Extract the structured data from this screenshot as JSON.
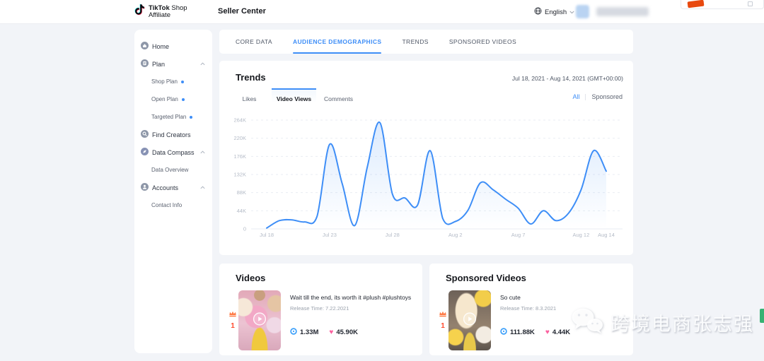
{
  "header": {
    "logo_bold": "TikTok",
    "logo_shop": "Shop",
    "logo_sub": "Affiliate",
    "title": "Seller Center",
    "language": "English"
  },
  "sidebar": {
    "items": [
      {
        "label": "Home",
        "icon": "home-icon"
      },
      {
        "label": "Plan",
        "icon": "plan-icon",
        "expanded": true,
        "children": [
          {
            "label": "Shop Plan",
            "dot": true
          },
          {
            "label": "Open Plan",
            "dot": true
          },
          {
            "label": "Targeted Plan",
            "dot": true
          }
        ]
      },
      {
        "label": "Find Creators",
        "icon": "magnifier-icon"
      },
      {
        "label": "Data Compass",
        "icon": "compass-icon",
        "expanded": true,
        "children": [
          {
            "label": "Data Overview"
          }
        ]
      },
      {
        "label": "Accounts",
        "icon": "person-icon",
        "expanded": true,
        "children": [
          {
            "label": "Contact Info"
          }
        ]
      }
    ]
  },
  "tabs": {
    "items": [
      {
        "label": "CORE DATA"
      },
      {
        "label": "AUDIENCE DEMOGRAPHICS"
      },
      {
        "label": "TRENDS"
      },
      {
        "label": "SPONSORED VIDEOS"
      }
    ],
    "active": "AUDIENCE DEMOGRAPHICS"
  },
  "trends": {
    "title": "Trends",
    "date_range": "Jul 18, 2021 - Aug 14, 2021 (GMT+00:00)",
    "subtabs": [
      {
        "label": "Likes"
      },
      {
        "label": "Video Views"
      },
      {
        "label": "Comments"
      }
    ],
    "active_subtab": "Video Views",
    "filters": [
      {
        "label": "All"
      },
      {
        "label": "Sponsored"
      }
    ],
    "active_filter": "All"
  },
  "chart_data": {
    "type": "area",
    "series_name": "Video Views",
    "x": [
      "Jul 18",
      "Jul 19",
      "Jul 20",
      "Jul 21",
      "Jul 22",
      "Jul 23",
      "Jul 24",
      "Jul 25",
      "Jul 26",
      "Jul 27",
      "Jul 28",
      "Jul 29",
      "Jul 30",
      "Jul 31",
      "Aug 1",
      "Aug 2",
      "Aug 3",
      "Aug 4",
      "Aug 5",
      "Aug 6",
      "Aug 7",
      "Aug 8",
      "Aug 9",
      "Aug 10",
      "Aug 11",
      "Aug 12",
      "Aug 13",
      "Aug 14"
    ],
    "values": [
      2000,
      20000,
      22000,
      17000,
      30000,
      205000,
      110000,
      8000,
      150000,
      258000,
      84000,
      75000,
      58000,
      190000,
      25000,
      18000,
      45000,
      112000,
      95000,
      72000,
      50000,
      12000,
      44000,
      20000,
      38000,
      95000,
      190000,
      140000
    ],
    "ylim": [
      0,
      264000
    ],
    "ytick_labels": [
      "264K",
      "220K",
      "176K",
      "132K",
      "88K",
      "44K",
      "0"
    ],
    "xticks": [
      {
        "label": "Jul 18",
        "day": 0
      },
      {
        "label": "Jul 23",
        "day": 5
      },
      {
        "label": "Jul 28",
        "day": 10
      },
      {
        "label": "Aug 2",
        "day": 15
      },
      {
        "label": "Aug 7",
        "day": 20
      },
      {
        "label": "Aug 12",
        "day": 25
      },
      {
        "label": "Aug 14",
        "day": 27
      }
    ],
    "grid": "dashed",
    "legend": "none",
    "line_color": "#3e8ef7"
  },
  "videos": {
    "title": "Videos",
    "items": [
      {
        "rank": "1",
        "title": "Wait till the end, its worth it #plush #plushtoys",
        "release": "Release Time: 7.22.2021",
        "views": "1.33M",
        "likes": "45.90K"
      }
    ]
  },
  "sponsored": {
    "title": "Sponsored Videos",
    "items": [
      {
        "rank": "1",
        "title": "So cute",
        "release": "Release Time: 8.3.2021",
        "views": "111.88K",
        "likes": "4.44K"
      }
    ]
  },
  "icons": {
    "heart": "♥"
  },
  "watermark": {
    "text": "跨境电商张志强"
  },
  "colors": {
    "accent": "#3e8ef7",
    "crown": "#ff7a45",
    "rank": "#ff4a2d",
    "heart": "#fb5f9e",
    "views_icon": "#3da0fa",
    "wechat_green": "#36b273",
    "red_blob": "#e8490f",
    "background": "#f2f4f8"
  }
}
